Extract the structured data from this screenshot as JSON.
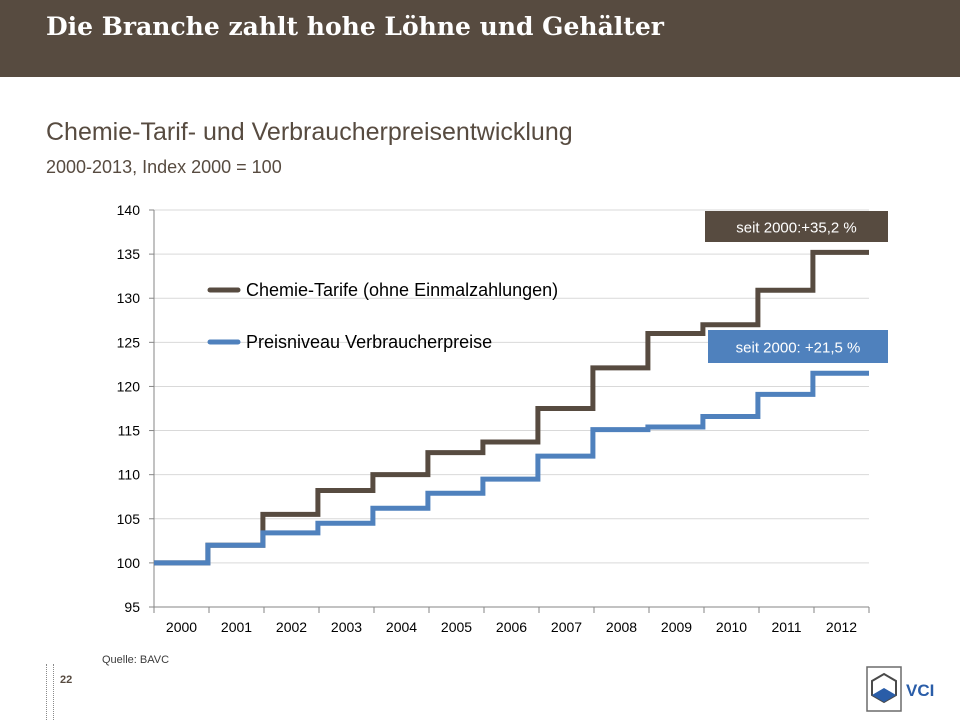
{
  "header": {
    "title": "Die Branche zahlt hohe Löhne und Gehälter"
  },
  "subtitle": "Chemie-Tarif- und Verbraucherpreisentwicklung",
  "subsubtitle": "2000-2013, Index 2000 = 100",
  "source": "Quelle:  BAVC",
  "page_number": "22",
  "logo_text": "VCI",
  "colors": {
    "header_bg": "#574b40",
    "chemie": "#574b40",
    "verbraucher": "#4f81bd"
  },
  "chart_data": {
    "type": "line",
    "step": true,
    "x": [
      "2000",
      "2001",
      "2002",
      "2003",
      "2004",
      "2005",
      "2006",
      "2007",
      "2008",
      "2009",
      "2010",
      "2011",
      "2012"
    ],
    "ylim": [
      95,
      140
    ],
    "yticks": [
      95,
      100,
      105,
      110,
      115,
      120,
      125,
      130,
      135,
      140
    ],
    "grid": true,
    "legend": "top-left",
    "series": [
      {
        "name": "Chemie-Tarife (ohne Einmalzahlungen)",
        "color": "#574b40",
        "steps": [
          [
            2000,
            100
          ],
          [
            2000.98,
            102
          ],
          [
            2001.98,
            105.5
          ],
          [
            2002.98,
            108.2
          ],
          [
            2003.98,
            110
          ],
          [
            2004.98,
            112.5
          ],
          [
            2005.98,
            113.7
          ],
          [
            2006.98,
            117.5
          ],
          [
            2007.98,
            122.1
          ],
          [
            2008.98,
            126
          ],
          [
            2009.98,
            127
          ],
          [
            2010.98,
            130.9
          ],
          [
            2011.98,
            135.2
          ]
        ],
        "end": 2013,
        "annotation": "seit 2000:+35,2 %"
      },
      {
        "name": "Preisniveau Verbraucherpreise",
        "color": "#4f81bd",
        "steps": [
          [
            2000,
            100
          ],
          [
            2000.98,
            102
          ],
          [
            2001.98,
            103.4
          ],
          [
            2002.98,
            104.5
          ],
          [
            2003.98,
            106.2
          ],
          [
            2004.98,
            107.9
          ],
          [
            2005.98,
            109.5
          ],
          [
            2006.98,
            112.1
          ],
          [
            2007.98,
            115.1
          ],
          [
            2008.98,
            115.4
          ],
          [
            2009.98,
            116.6
          ],
          [
            2010.98,
            119.1
          ],
          [
            2011.98,
            121.5
          ]
        ],
        "end": 2013,
        "annotation": "seit 2000: +21,5 %"
      }
    ]
  }
}
